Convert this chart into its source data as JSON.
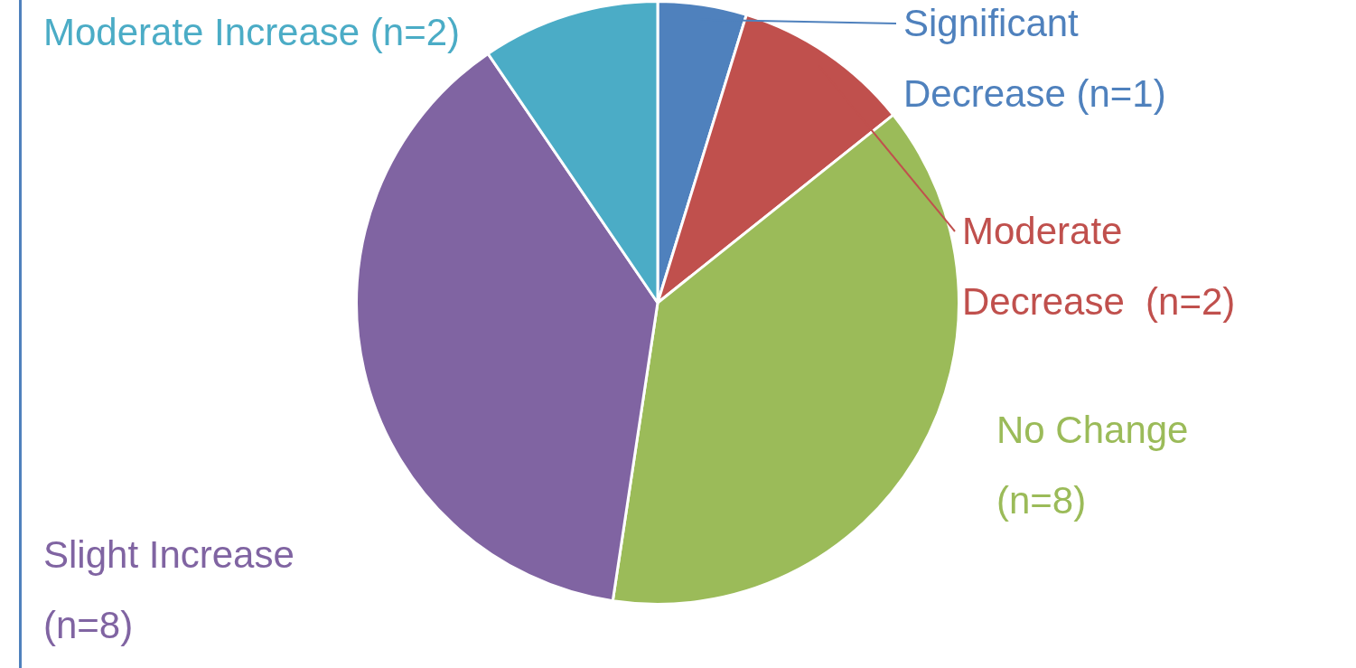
{
  "chart_data": {
    "type": "pie",
    "categories": [
      "Significant Decrease (n=1)",
      "Moderate Decrease  (n=2)",
      "No Change (n=8)",
      "Slight Increase (n=8)",
      "Moderate Increase (n=2)"
    ],
    "values": [
      1,
      2,
      8,
      8,
      2
    ],
    "colors": [
      "#4f81bd",
      "#c0504d",
      "#9bbb59",
      "#8064a2",
      "#4bacc6"
    ],
    "legend": false
  }
}
